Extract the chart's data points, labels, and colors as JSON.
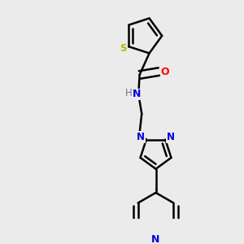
{
  "bg_color": "#ebebeb",
  "bond_color": "#000000",
  "S_color": "#b8b800",
  "N_color": "#0000dd",
  "O_color": "#ff0000",
  "H_color": "#777777",
  "bond_width": 1.8,
  "figsize": [
    3.0,
    3.0
  ],
  "dpi": 100,
  "xlim": [
    0.0,
    1.0
  ],
  "ylim": [
    0.0,
    1.0
  ]
}
